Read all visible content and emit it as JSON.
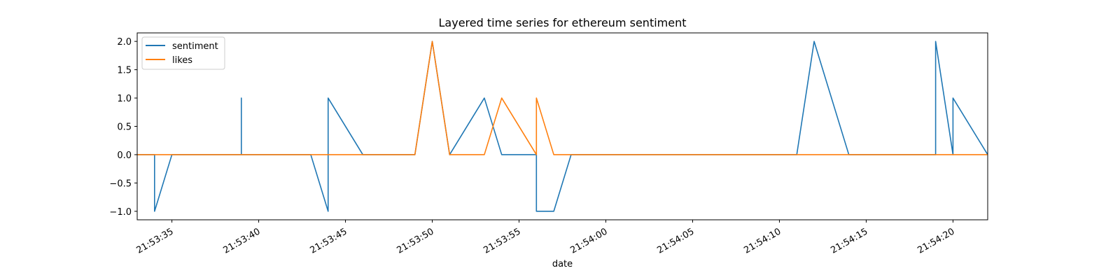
{
  "chart_data": {
    "type": "line",
    "title": "Layered time series for ethereum sentiment",
    "xlabel": "date",
    "ylabel": "",
    "ylim": [
      -1.15,
      2.15
    ],
    "xlim": [
      "21:53:33",
      "21:54:22"
    ],
    "grid": false,
    "legend_position": "top-left",
    "x_ticks": [
      "21:53:35",
      "21:53:40",
      "21:53:45",
      "21:53:50",
      "21:53:55",
      "21:54:00",
      "21:54:05",
      "21:54:10",
      "21:54:15",
      "21:54:20"
    ],
    "y_ticks": [
      "−1.0",
      "−0.5",
      "0.0",
      "0.5",
      "1.0",
      "1.5",
      "2.0"
    ],
    "y_tick_values": [
      -1.0,
      -0.5,
      0.0,
      0.5,
      1.0,
      1.5,
      2.0
    ],
    "series": [
      {
        "name": "sentiment",
        "color": "#1f77b4",
        "points": [
          [
            "21:53:33",
            0
          ],
          [
            "21:53:34",
            0
          ],
          [
            "21:53:34",
            -1
          ],
          [
            "21:53:35",
            0
          ],
          [
            "21:53:39",
            0
          ],
          [
            "21:53:39",
            1
          ],
          [
            "21:53:39",
            0
          ],
          [
            "21:53:43",
            0
          ],
          [
            "21:53:44",
            -1
          ],
          [
            "21:53:44",
            1
          ],
          [
            "21:53:46",
            0
          ],
          [
            "21:53:49",
            0
          ],
          [
            "21:53:50",
            2
          ],
          [
            "21:53:51",
            0
          ],
          [
            "21:53:53",
            1
          ],
          [
            "21:53:54",
            0
          ],
          [
            "21:53:56",
            0
          ],
          [
            "21:53:56",
            -1
          ],
          [
            "21:53:57",
            -1
          ],
          [
            "21:53:58",
            0
          ],
          [
            "21:54:11",
            0
          ],
          [
            "21:54:12",
            2
          ],
          [
            "21:54:14",
            0
          ],
          [
            "21:54:19",
            0
          ],
          [
            "21:54:19",
            2
          ],
          [
            "21:54:20",
            0
          ],
          [
            "21:54:20",
            1
          ],
          [
            "21:54:22",
            0
          ]
        ]
      },
      {
        "name": "likes",
        "color": "#ff7f0e",
        "points": [
          [
            "21:53:33",
            0
          ],
          [
            "21:53:49",
            0
          ],
          [
            "21:53:50",
            2
          ],
          [
            "21:53:51",
            0
          ],
          [
            "21:53:53",
            0
          ],
          [
            "21:53:54",
            1
          ],
          [
            "21:53:56",
            0
          ],
          [
            "21:53:56",
            1
          ],
          [
            "21:53:57",
            0
          ],
          [
            "21:54:22",
            0
          ]
        ]
      }
    ]
  }
}
